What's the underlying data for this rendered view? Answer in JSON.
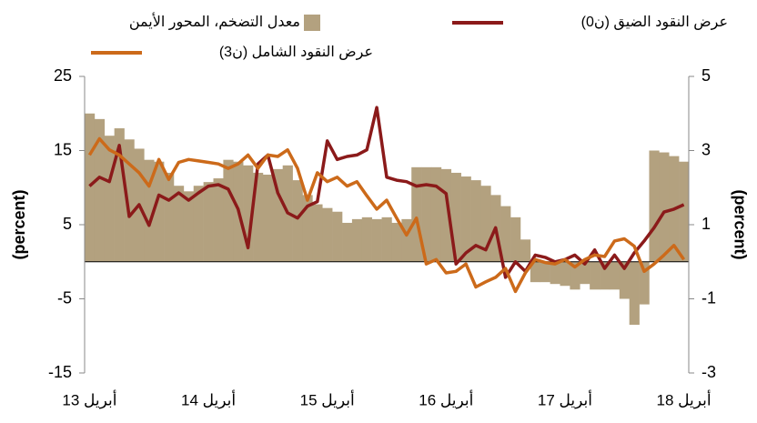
{
  "chart_data": {
    "type": "combo",
    "categories": [
      "أبريل 13",
      null,
      null,
      null,
      null,
      null,
      null,
      null,
      null,
      null,
      null,
      null,
      "أبريل 14",
      null,
      null,
      null,
      null,
      null,
      null,
      null,
      null,
      null,
      null,
      null,
      "أبريل 15",
      null,
      null,
      null,
      null,
      null,
      null,
      null,
      null,
      null,
      null,
      null,
      "أبريل 16",
      null,
      null,
      null,
      null,
      null,
      null,
      null,
      null,
      null,
      null,
      null,
      "أبريل 17",
      null,
      null,
      null,
      null,
      null,
      null,
      null,
      null,
      null,
      null,
      null,
      "أبريل 18"
    ],
    "series": [
      {
        "name": "معدل التضخم، المحور الأيمن",
        "type": "bar",
        "axis": "y2",
        "color": "#b3a17f",
        "values": [
          4.0,
          3.85,
          3.4,
          3.6,
          3.3,
          3.05,
          2.75,
          2.7,
          2.4,
          2.05,
          1.9,
          2.05,
          2.15,
          2.25,
          2.75,
          2.7,
          2.6,
          2.4,
          2.35,
          2.5,
          2.6,
          2.2,
          1.8,
          1.55,
          1.45,
          1.35,
          1.05,
          1.15,
          1.2,
          1.15,
          1.2,
          1.05,
          1.15,
          2.55,
          2.55,
          2.55,
          2.5,
          2.4,
          2.3,
          2.2,
          2.05,
          1.8,
          1.5,
          1.2,
          0.6,
          -0.55,
          -0.55,
          -0.6,
          -0.65,
          -0.75,
          -0.6,
          -0.75,
          -0.75,
          -0.75,
          -1.0,
          -1.7,
          -1.15,
          3.0,
          2.95,
          2.85,
          2.7
        ]
      },
      {
        "name": "عرض النقود الضيق (ن0)",
        "type": "line",
        "axis": "y",
        "color": "#8b1a1a",
        "values": [
          10.2,
          11.4,
          10.8,
          15.7,
          6.1,
          7.7,
          4.9,
          9.0,
          8.3,
          9.3,
          8.3,
          9.3,
          10.2,
          10.4,
          9.8,
          7.1,
          1.9,
          13.2,
          14.4,
          9.3,
          6.6,
          5.9,
          7.5,
          8.1,
          16.3,
          13.8,
          14.2,
          14.4,
          15.1,
          20.8,
          11.4,
          11.0,
          10.8,
          10.2,
          10.4,
          10.2,
          9.2,
          -0.3,
          1.2,
          2.2,
          1.6,
          4.6,
          -2.1,
          0.0,
          -1.3,
          0.9,
          0.6,
          0.0,
          0.3,
          0.9,
          -0.3,
          1.6,
          -0.9,
          0.9,
          -0.9,
          1.2,
          2.8,
          4.6,
          6.7,
          7.1,
          7.7
        ]
      },
      {
        "name": "عرض النقود الشامل (ن3)",
        "type": "line",
        "axis": "y",
        "color": "#cc6a1a",
        "values": [
          14.4,
          16.6,
          15.1,
          14.4,
          13.2,
          12.0,
          10.2,
          13.8,
          11.1,
          13.4,
          13.8,
          13.6,
          13.4,
          13.2,
          12.6,
          13.2,
          14.4,
          12.6,
          14.4,
          14.2,
          15.1,
          12.6,
          8.3,
          12.0,
          10.8,
          11.4,
          10.2,
          10.8,
          8.9,
          7.1,
          8.3,
          5.9,
          3.6,
          5.9,
          -0.3,
          0.3,
          -1.5,
          -1.3,
          -0.3,
          -3.4,
          -2.7,
          -2.1,
          -0.9,
          -4.0,
          -1.5,
          0.3,
          -0.1,
          -0.3,
          0.3,
          -0.7,
          0.3,
          0.9,
          0.7,
          2.8,
          3.1,
          2.1,
          -1.3,
          -0.3,
          0.9,
          2.2,
          0.3
        ]
      }
    ],
    "ylabel": "(percent)",
    "y2label": "(percent)",
    "ylim": [
      -15,
      25
    ],
    "yticks": [
      -15,
      -5,
      5,
      15,
      25
    ],
    "y2lim": [
      -3,
      5
    ],
    "y2ticks": [
      -3,
      -1,
      1,
      3,
      5
    ]
  }
}
